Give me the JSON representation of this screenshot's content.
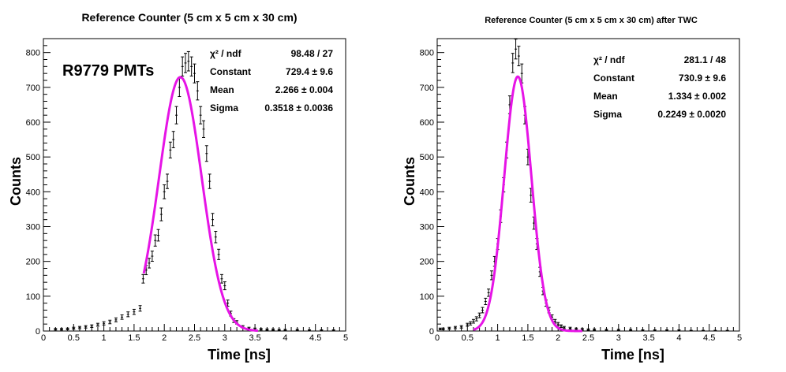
{
  "chart_data": [
    {
      "type": "scatter",
      "title": "Reference Counter (5 cm x 5 cm x 30 cm)",
      "xlabel": "Time [ns]",
      "ylabel": "Counts",
      "xlim": [
        0,
        5
      ],
      "ylim": [
        0,
        840
      ],
      "xticks": [
        "0",
        "0.5",
        "1",
        "1.5",
        "2",
        "2.5",
        "3",
        "3.5",
        "4",
        "4.5",
        "5"
      ],
      "yticks": [
        "0",
        "100",
        "200",
        "300",
        "400",
        "500",
        "600",
        "700",
        "800"
      ],
      "annotation": "R9779 PMTs",
      "annotation_color": "#1515d6",
      "fit_color": "#e614e6",
      "stats": [
        {
          "label": "χ² / ndf",
          "value": "98.48 / 27"
        },
        {
          "label": "Constant",
          "value": "729.4 ± 9.6"
        },
        {
          "label": "Mean",
          "value": "2.266 ± 0.004"
        },
        {
          "label": "Sigma",
          "value": "0.3518 ± 0.0036"
        }
      ],
      "fit": {
        "constant": 729.4,
        "mean": 2.266,
        "sigma": 0.3518,
        "range": [
          1.66,
          3.55
        ]
      },
      "series": [
        {
          "x": [
            0.2,
            0.3,
            0.4,
            0.5,
            0.6,
            0.7,
            0.8,
            0.9,
            1.0,
            1.1,
            1.2,
            1.3,
            1.4,
            1.5,
            1.6,
            1.65,
            1.7,
            1.75,
            1.8,
            1.85,
            1.9,
            1.95,
            2.0,
            2.05,
            2.1,
            2.15,
            2.2,
            2.25,
            2.3,
            2.35,
            2.4,
            2.45,
            2.5,
            2.55,
            2.6,
            2.65,
            2.7,
            2.75,
            2.8,
            2.85,
            2.9,
            2.95,
            3.0,
            3.05,
            3.1,
            3.15,
            3.2,
            3.3,
            3.4,
            3.5,
            3.6,
            3.7,
            3.8,
            3.9,
            4.0,
            4.2,
            4.4,
            4.6,
            4.8
          ],
          "y": [
            5,
            5,
            6,
            8,
            10,
            12,
            14,
            18,
            22,
            26,
            32,
            40,
            48,
            55,
            65,
            150,
            175,
            195,
            215,
            260,
            275,
            335,
            400,
            430,
            520,
            550,
            620,
            700,
            760,
            770,
            775,
            760,
            740,
            690,
            620,
            580,
            510,
            430,
            320,
            270,
            220,
            150,
            130,
            80,
            50,
            30,
            25,
            12,
            8,
            6,
            5,
            4,
            4,
            3,
            3,
            3,
            2,
            2,
            2
          ]
        }
      ]
    },
    {
      "type": "scatter",
      "title": "Reference Counter (5 cm x 5 cm x 30 cm) after TWC",
      "xlabel": "Time [ns]",
      "ylabel": "Counts",
      "xlim": [
        0,
        5
      ],
      "ylim": [
        0,
        840
      ],
      "xticks": [
        "0",
        "0.5",
        "1",
        "1.5",
        "2",
        "2.5",
        "3",
        "3.5",
        "4",
        "4.5",
        "5"
      ],
      "yticks": [
        "0",
        "100",
        "200",
        "300",
        "400",
        "500",
        "600",
        "700",
        "800"
      ],
      "fit_color": "#e614e6",
      "stats": [
        {
          "label": "χ² / ndf",
          "value": "281.1 / 48"
        },
        {
          "label": "Constant",
          "value": "730.9 ± 9.6"
        },
        {
          "label": "Mean",
          "value": "1.334 ± 0.002"
        },
        {
          "label": "Sigma",
          "value": "0.2249 ± 0.0020"
        }
      ],
      "fit": {
        "constant": 730.9,
        "mean": 1.334,
        "sigma": 0.2249,
        "range": [
          0.6,
          2.4
        ]
      },
      "series": [
        {
          "x": [
            0.05,
            0.1,
            0.2,
            0.3,
            0.4,
            0.5,
            0.55,
            0.6,
            0.65,
            0.7,
            0.75,
            0.8,
            0.85,
            0.9,
            0.95,
            1.0,
            1.05,
            1.1,
            1.15,
            1.2,
            1.25,
            1.3,
            1.35,
            1.4,
            1.45,
            1.5,
            1.55,
            1.6,
            1.65,
            1.7,
            1.75,
            1.8,
            1.85,
            1.9,
            1.95,
            2.0,
            2.05,
            2.1,
            2.2,
            2.3,
            2.4,
            2.5,
            2.6,
            2.8,
            3.0,
            3.2,
            3.4,
            3.6,
            3.8,
            4.0,
            4.2,
            4.4,
            4.6,
            4.8
          ],
          "y": [
            6,
            6,
            8,
            10,
            12,
            18,
            22,
            28,
            35,
            45,
            60,
            85,
            110,
            160,
            200,
            250,
            330,
            420,
            520,
            650,
            770,
            810,
            790,
            740,
            620,
            500,
            390,
            310,
            250,
            170,
            115,
            80,
            60,
            40,
            28,
            20,
            14,
            10,
            8,
            6,
            5,
            4,
            4,
            3,
            3,
            3,
            2,
            2,
            2,
            2,
            1,
            1,
            1,
            1
          ]
        }
      ]
    }
  ]
}
